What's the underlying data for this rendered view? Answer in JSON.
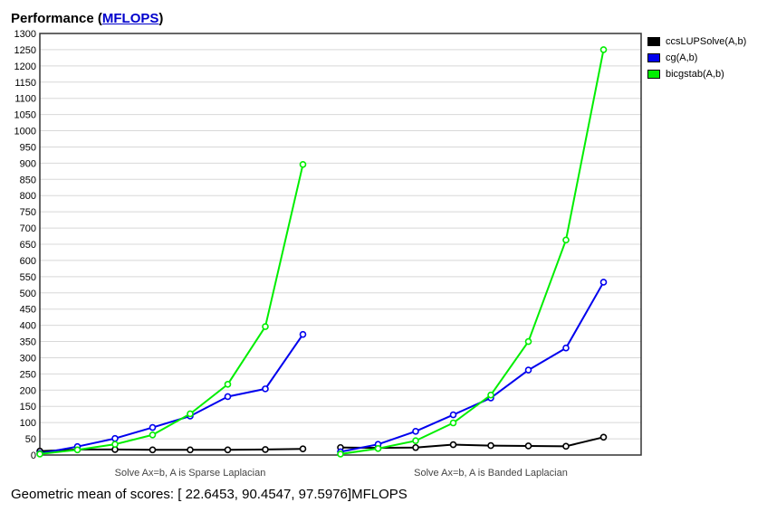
{
  "header": {
    "title_prefix": "Performance (",
    "title_link": "MFLOPS",
    "title_suffix": ")"
  },
  "footer": {
    "text": "Geometric mean of scores: [ 22.6453, 90.4547, 97.5976]MFLOPS"
  },
  "chart_data": {
    "type": "line",
    "ylim": [
      0,
      1300
    ],
    "y_tick_step": 50,
    "grid": true,
    "legend_placement": "right",
    "groups": [
      {
        "label": "Solve Ax=b, A is Sparse Laplacian",
        "points": 8
      },
      {
        "label": "Solve Ax=b, A is Banded Laplacian",
        "points": 8
      }
    ],
    "series": [
      {
        "name": "ccsLUPSolve(A,b)",
        "color": "#000000",
        "groups": [
          [
            12,
            17,
            17,
            16,
            16,
            16,
            17,
            19
          ],
          [
            23,
            22,
            23,
            32,
            29,
            28,
            27,
            55
          ]
        ]
      },
      {
        "name": "cg(A,b)",
        "color": "#0000ee",
        "groups": [
          [
            5,
            26,
            51,
            85,
            120,
            180,
            204,
            372
          ],
          [
            10,
            33,
            73,
            124,
            176,
            262,
            330,
            533
          ]
        ]
      },
      {
        "name": "bicgstab(A,b)",
        "color": "#00ee00",
        "groups": [
          [
            3,
            16,
            33,
            62,
            127,
            218,
            396,
            896
          ],
          [
            3,
            20,
            44,
            99,
            185,
            350,
            663,
            1250
          ]
        ]
      }
    ]
  }
}
